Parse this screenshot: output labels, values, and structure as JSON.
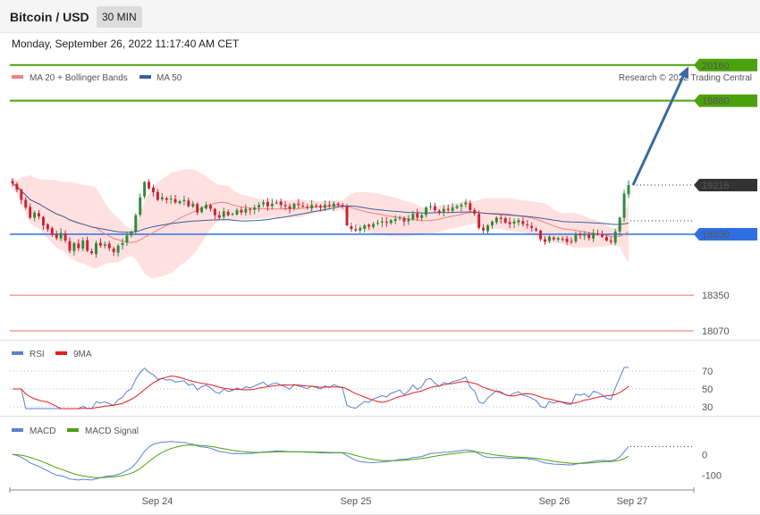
{
  "header": {
    "title": "Bitcoin / USD",
    "interval": "30 MIN",
    "datetime": "Monday, September 26, 2022 11:17:40 AM CET"
  },
  "colors": {
    "bull": "#2e8b3a",
    "bear": "#cc2233",
    "band_fill": "#ffd6d6",
    "ma20": "#f08080",
    "ma50": "#3a5f9a",
    "resistance": "#4ca20e",
    "support_blue": "#2f6fe0",
    "support_red": "#f0a0a0",
    "arrow": "#3a6aa5",
    "current": "#333333",
    "rsi": "#5b7fd6",
    "rsi_ma": "#e02020",
    "macd": "#5b7fd6",
    "macd_signal": "#4ca20e"
  },
  "chart_data": [
    {
      "type": "candlestick",
      "name": "price",
      "legend": [
        {
          "label": "MA 20 + Bollinger Bands",
          "color": "#f08080"
        },
        {
          "label": "MA 50",
          "color": "#3a5f9a"
        }
      ],
      "credit": "Research © 2022 Trading Central",
      "ylim": [
        18000,
        20250
      ],
      "x_ticks": [
        "Sep 24",
        "Sep 25",
        "Sep 26",
        "Sep 27"
      ],
      "levels": [
        {
          "value": 20160,
          "label": "20160",
          "kind": "resistance"
        },
        {
          "value": 19880,
          "label": "19880",
          "kind": "resistance"
        },
        {
          "value": 19216,
          "label": "19216",
          "kind": "current"
        },
        {
          "value": 18830,
          "label": "18830",
          "kind": "support"
        },
        {
          "value": 18350,
          "label": "18350",
          "kind": "support_red"
        },
        {
          "value": 18070,
          "label": "18070",
          "kind": "support_red"
        }
      ],
      "projection": {
        "from": 19216,
        "to": 20150
      },
      "close": [
        19230,
        19180,
        19100,
        19040,
        18960,
        19000,
        18970,
        18900,
        18870,
        18830,
        18800,
        18840,
        18780,
        18700,
        18760,
        18720,
        18780,
        18700,
        18680,
        18760,
        18740,
        18750,
        18720,
        18690,
        18740,
        18760,
        18820,
        18850,
        18980,
        19120,
        19240,
        19190,
        19160,
        19100,
        19120,
        19100,
        19110,
        19080,
        19090,
        19100,
        19050,
        19070,
        19000,
        19040,
        19060,
        19030,
        18980,
        18960,
        19010,
        18980,
        18990,
        19020,
        19000,
        19030,
        19020,
        19040,
        19060,
        19080,
        19050,
        19070,
        19080,
        19060,
        19050,
        19030,
        19070,
        19060,
        19050,
        19040,
        19060,
        19050,
        19040,
        19060,
        19050,
        19070,
        19060,
        19050,
        18900,
        18870,
        18860,
        18880,
        18900,
        18890,
        18910,
        18920,
        18930,
        18920,
        18940,
        18950,
        18960,
        18930,
        18950,
        18990,
        18960,
        18980,
        19040,
        19050,
        19020,
        19000,
        19030,
        19020,
        19040,
        19050,
        19060,
        19080,
        19020,
        18990,
        18880,
        18860,
        18900,
        18930,
        18960,
        18950,
        18920,
        18910,
        18930,
        18940,
        18910,
        18900,
        18880,
        18860,
        18790,
        18770,
        18810,
        18790,
        18800,
        18790,
        18770,
        18770,
        18830,
        18820,
        18830,
        18800,
        18840,
        18830,
        18810,
        18780,
        18770,
        18850,
        18960,
        19150,
        19216
      ]
    },
    {
      "type": "line",
      "name": "rsi",
      "legend": [
        {
          "label": "RSI",
          "color": "#5b7fd6"
        },
        {
          "label": "9MA",
          "color": "#e02020"
        }
      ],
      "ylim": [
        25,
        80
      ],
      "y_ticks": [
        70,
        50,
        30
      ]
    },
    {
      "type": "line",
      "name": "macd",
      "legend": [
        {
          "label": "MACD",
          "color": "#5b7fd6"
        },
        {
          "label": "MACD Signal",
          "color": "#4ca20e"
        }
      ],
      "ylim": [
        -160,
        80
      ],
      "y_ticks": [
        0,
        -100
      ]
    }
  ]
}
